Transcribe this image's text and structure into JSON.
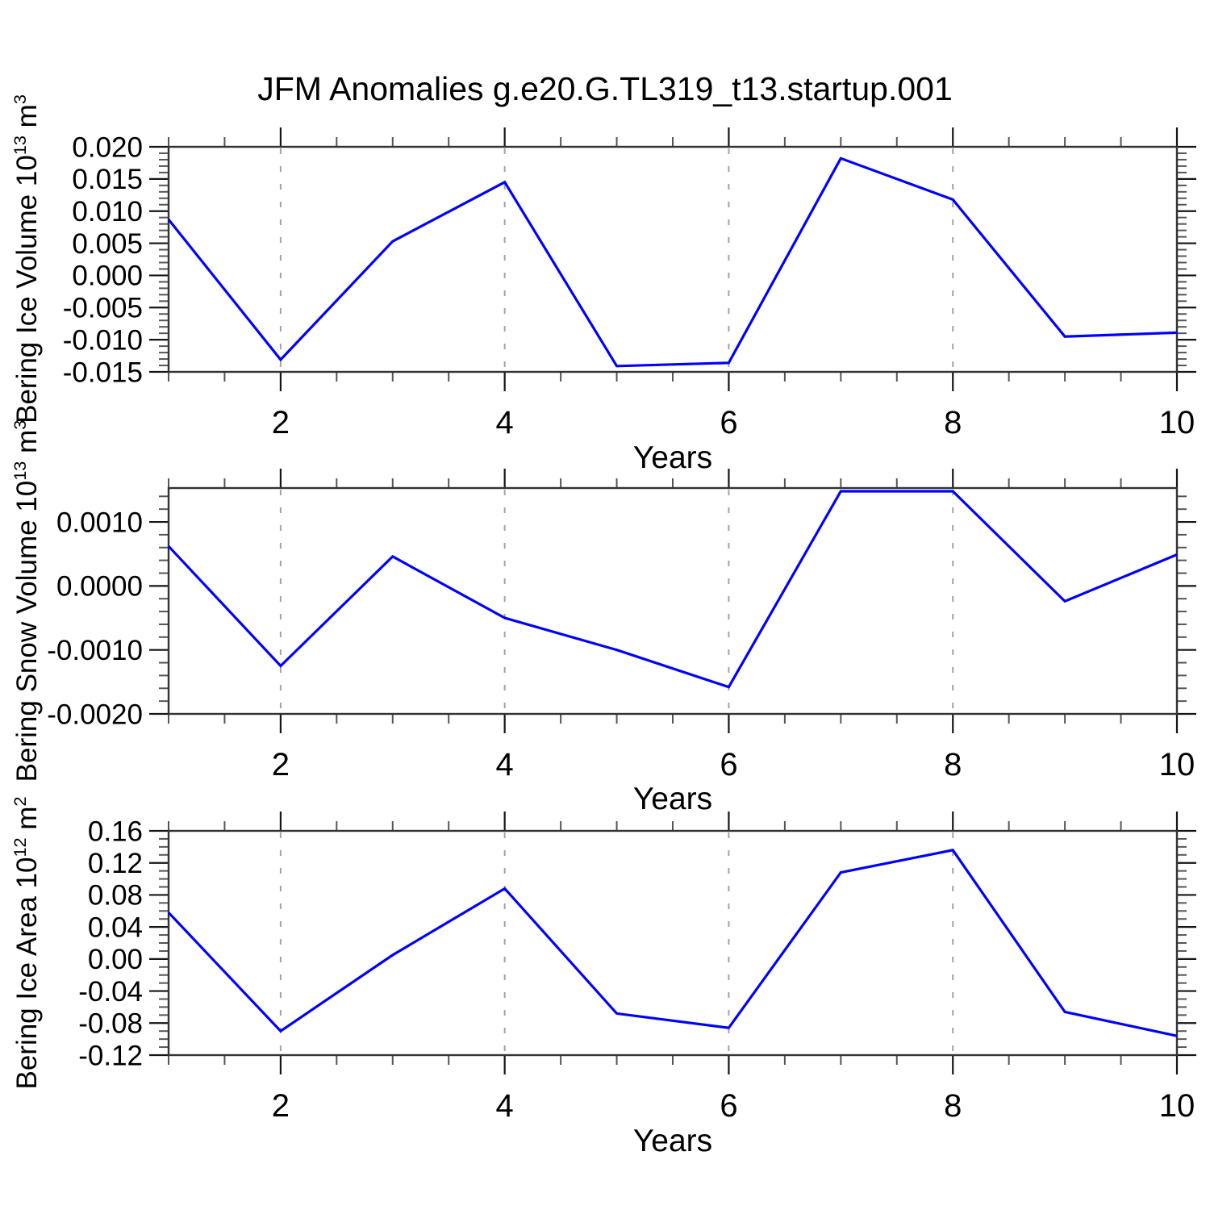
{
  "chart_data": {
    "type": "line",
    "title": "JFM Anomalies g.e20.G.TL319_t13.startup.001",
    "xlabel": "Years",
    "x": [
      1,
      2,
      3,
      4,
      5,
      6,
      7,
      8,
      9,
      10
    ],
    "xlim": [
      1,
      10
    ],
    "xtick_values": [
      2,
      4,
      6,
      8,
      10
    ],
    "xtick_labels": [
      "2",
      "4",
      "6",
      "8",
      "10"
    ],
    "x_minor_step": 0.5,
    "gridlines_x": [
      2,
      4,
      6,
      8
    ],
    "grid_style": "dashed-vertical",
    "legend": "none",
    "line_color": "#0000ff",
    "frame_color": "#333333",
    "grid_color": "#a3a3a3",
    "background_color": "#ffffff",
    "panels": [
      {
        "name": "bering-ice-volume",
        "ylabel": {
          "base": "Bering Ice Volume 10",
          "exp": "13",
          "unit": " m",
          "unit_exp": "3"
        },
        "ylim": [
          -0.015,
          0.02
        ],
        "ytick_values": [
          0.02,
          0.015,
          0.01,
          0.005,
          0.0,
          -0.005,
          -0.01,
          -0.015
        ],
        "ytick_labels": [
          "0.020",
          "0.015",
          "0.010",
          "0.005",
          "0.000",
          "-0.005",
          "-0.010",
          "-0.015"
        ],
        "y_minor_step": 0.001,
        "values": [
          0.0087,
          -0.0131,
          0.0053,
          0.0145,
          -0.0141,
          -0.0136,
          0.0182,
          0.0118,
          -0.0095,
          -0.0089
        ]
      },
      {
        "name": "bering-snow-volume",
        "ylabel": {
          "base": "Bering Snow Volume 10",
          "exp": "13",
          "unit": " m",
          "unit_exp": "3"
        },
        "ylim": [
          -0.002,
          0.00153
        ],
        "ytick_values": [
          0.001,
          0.0,
          -0.001,
          -0.002
        ],
        "ytick_labels": [
          "0.0010",
          "0.0000",
          "-0.0010",
          "-0.0020"
        ],
        "y_minor_step": 0.0002,
        "values": [
          0.00062,
          -0.00125,
          0.00046,
          -0.0005,
          -0.001,
          -0.00158,
          0.00148,
          0.00148,
          -0.00024,
          0.00049
        ]
      },
      {
        "name": "bering-ice-area",
        "ylabel": {
          "base": "Bering Ice Area 10",
          "exp": "12",
          "unit": " m",
          "unit_exp": "2"
        },
        "ylim": [
          -0.12,
          0.16
        ],
        "ytick_values": [
          0.16,
          0.12,
          0.08,
          0.04,
          0.0,
          -0.04,
          -0.08,
          -0.12
        ],
        "ytick_labels": [
          "0.16",
          "0.12",
          "0.08",
          "0.04",
          "0.00",
          "-0.04",
          "-0.08",
          "-0.12"
        ],
        "y_minor_step": 0.01,
        "values": [
          0.058,
          -0.09,
          0.005,
          0.088,
          -0.068,
          -0.086,
          0.108,
          0.136,
          -0.066,
          -0.096
        ]
      }
    ]
  }
}
